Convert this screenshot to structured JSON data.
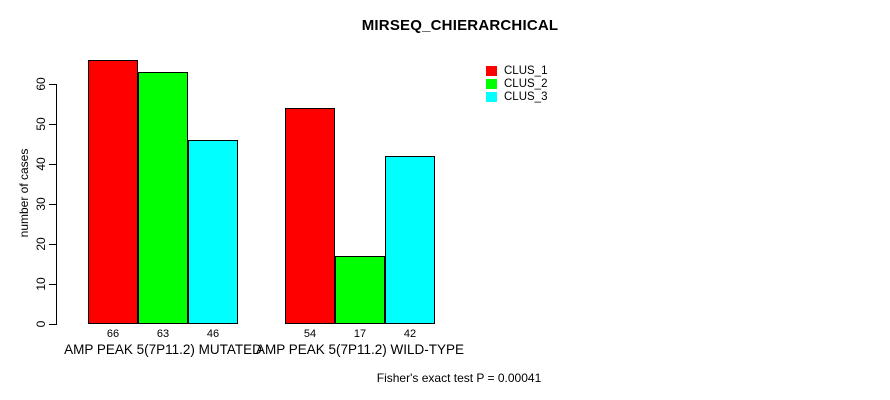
{
  "chart_data": {
    "type": "bar",
    "title": "MIRSEQ_CHIERARCHICAL",
    "ylabel": "number of cases",
    "xlabel": "",
    "categories": [
      "AMP PEAK 5(7P11.2) MUTATED",
      "AMP PEAK 5(7P11.2) WILD-TYPE"
    ],
    "series": [
      {
        "name": "CLUS_1",
        "color": "#ff0000",
        "values": [
          66,
          54
        ]
      },
      {
        "name": "CLUS_2",
        "color": "#00ff00",
        "values": [
          63,
          17
        ]
      },
      {
        "name": "CLUS_3",
        "color": "#00ffff",
        "values": [
          46,
          42
        ]
      }
    ],
    "bar_value_labels": [
      [
        66,
        63,
        46
      ],
      [
        54,
        17,
        42
      ]
    ],
    "yticks": [
      0,
      10,
      20,
      30,
      40,
      50,
      60
    ],
    "ylim": [
      0,
      66
    ],
    "grid": false,
    "legend_position": "top-right",
    "bar_border_color": "#000000",
    "background_color": "#ffffff",
    "annotation": "Fisher's exact test P = 0.00041"
  }
}
